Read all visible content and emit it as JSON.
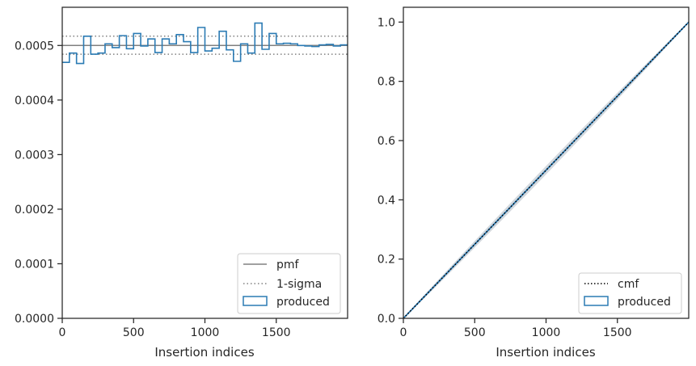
{
  "colors": {
    "produced": "#2b7bb4",
    "pmf": "#808080",
    "sigma": "#808080",
    "cmf": "#000000",
    "spread": "#d3d8dd"
  },
  "chart_data": [
    {
      "type": "histogram",
      "xlabel": "Insertion indices",
      "ylabel": "",
      "xlim": [
        0,
        2000
      ],
      "ylim": [
        0,
        0.00057
      ],
      "xticks": [
        0,
        500,
        1000,
        1500
      ],
      "xtick_labels": [
        "0",
        "500",
        "1000",
        "1500"
      ],
      "yticks": [
        0,
        0.0001,
        0.0002,
        0.0003,
        0.0004,
        0.0005
      ],
      "ytick_labels": [
        "0.0000",
        "0.0001",
        "0.0002",
        "0.0003",
        "0.0004",
        "0.0005"
      ],
      "pmf": 0.0005,
      "sigma_band": [
        0.000484,
        0.000517
      ],
      "bin_width": 50,
      "produced": [
        0.000469,
        0.000486,
        0.000467,
        0.000517,
        0.000484,
        0.000486,
        0.000503,
        0.000496,
        0.000518,
        0.000494,
        0.000522,
        0.000499,
        0.000512,
        0.000487,
        0.000512,
        0.000503,
        0.00052,
        0.000507,
        0.000487,
        0.000533,
        0.00049,
        0.000495,
        0.000526,
        0.000492,
        0.000471,
        0.000503,
        0.000486,
        0.000541,
        0.000493,
        0.000522,
        0.000503,
        0.000504,
        0.000503,
        0.0005,
        0.000499,
        0.000498,
        0.000501,
        0.000502,
        0.000499,
        0.000501
      ],
      "legend": [
        {
          "kind": "line",
          "label": "pmf"
        },
        {
          "kind": "dotted",
          "label": "1-sigma"
        },
        {
          "kind": "patch",
          "label": "produced"
        }
      ],
      "legend_position": "lower-right"
    },
    {
      "type": "line",
      "xlabel": "Insertion indices",
      "ylabel": "",
      "xlim": [
        0,
        2000
      ],
      "ylim": [
        0,
        1.05
      ],
      "xticks": [
        0,
        500,
        1000,
        1500
      ],
      "xtick_labels": [
        "0",
        "500",
        "1000",
        "1500"
      ],
      "yticks": [
        0,
        0.2,
        0.4,
        0.6,
        0.8,
        1.0
      ],
      "ytick_labels": [
        "0.0",
        "0.2",
        "0.4",
        "0.6",
        "0.8",
        "1.0"
      ],
      "cmf": {
        "x": [
          0,
          2000
        ],
        "y": [
          0,
          1.0
        ]
      },
      "produced": {
        "x": [
          0,
          2000
        ],
        "y": [
          0,
          1.0
        ]
      },
      "legend": [
        {
          "kind": "dotted",
          "label": "cmf"
        },
        {
          "kind": "patch",
          "label": "produced"
        }
      ],
      "legend_position": "lower-right"
    }
  ]
}
